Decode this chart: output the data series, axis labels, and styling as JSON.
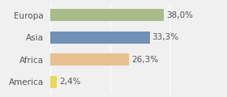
{
  "categories": [
    "Europa",
    "Asia",
    "Africa",
    "America"
  ],
  "values": [
    38.0,
    33.3,
    26.3,
    2.4
  ],
  "bar_colors": [
    "#a8bb8a",
    "#7090b8",
    "#e8c090",
    "#e8d860"
  ],
  "xlim": [
    0,
    50
  ],
  "background_color": "#f0f0f0",
  "bar_height": 0.55,
  "fontsize_labels": 7.5,
  "fontsize_values": 7.5,
  "figwidth": 2.8,
  "figheight": 1.2,
  "dpi": 100
}
